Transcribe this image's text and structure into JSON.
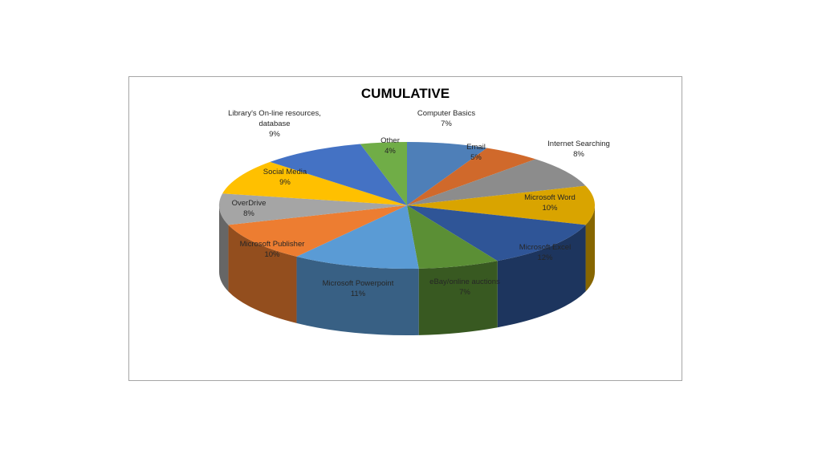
{
  "chart_data": {
    "type": "pie",
    "title": "CUMULATIVE",
    "slices": [
      {
        "name": "Computer Basics",
        "name_lines": [
          "Computer Basics"
        ],
        "pct_label": "7%",
        "value": 7,
        "color": "#4e7fb8"
      },
      {
        "name": "Email",
        "name_lines": [
          "Email"
        ],
        "pct_label": "5%",
        "value": 5,
        "color": "#d0692b"
      },
      {
        "name": "Internet Searching",
        "name_lines": [
          "Internet Searching"
        ],
        "pct_label": "8%",
        "value": 8,
        "color": "#8c8c8c"
      },
      {
        "name": "Microsoft Word",
        "name_lines": [
          "Microsoft Word"
        ],
        "pct_label": "10%",
        "value": 10,
        "color": "#d9a400"
      },
      {
        "name": "Microsoft Excel",
        "name_lines": [
          "Microsoft Excel"
        ],
        "pct_label": "12%",
        "value": 12,
        "color": "#2f5597"
      },
      {
        "name": "eBay/online auctions",
        "name_lines": [
          "eBay/online auctions"
        ],
        "pct_label": "7%",
        "value": 7,
        "color": "#5b8f35"
      },
      {
        "name": "Microsoft Powerpoint",
        "name_lines": [
          "Microsoft Powerpoint"
        ],
        "pct_label": "11%",
        "value": 11,
        "color": "#5a9bd5"
      },
      {
        "name": "Microsoft Publisher",
        "name_lines": [
          "Microsoft Publisher"
        ],
        "pct_label": "10%",
        "value": 10,
        "color": "#ed7d31"
      },
      {
        "name": "OverDrive",
        "name_lines": [
          "OverDrive"
        ],
        "pct_label": "8%",
        "value": 8,
        "color": "#a5a5a5"
      },
      {
        "name": "Social Media",
        "name_lines": [
          "Social Media"
        ],
        "pct_label": "9%",
        "value": 9,
        "color": "#ffc000"
      },
      {
        "name": "Library's On-line resources, database",
        "name_lines": [
          "Library's On-line resources,",
          "database"
        ],
        "pct_label": "9%",
        "value": 9,
        "color": "#4472c4"
      },
      {
        "name": "Other",
        "name_lines": [
          "Other"
        ],
        "pct_label": "4%",
        "value": 4,
        "color": "#70ad47"
      }
    ]
  }
}
